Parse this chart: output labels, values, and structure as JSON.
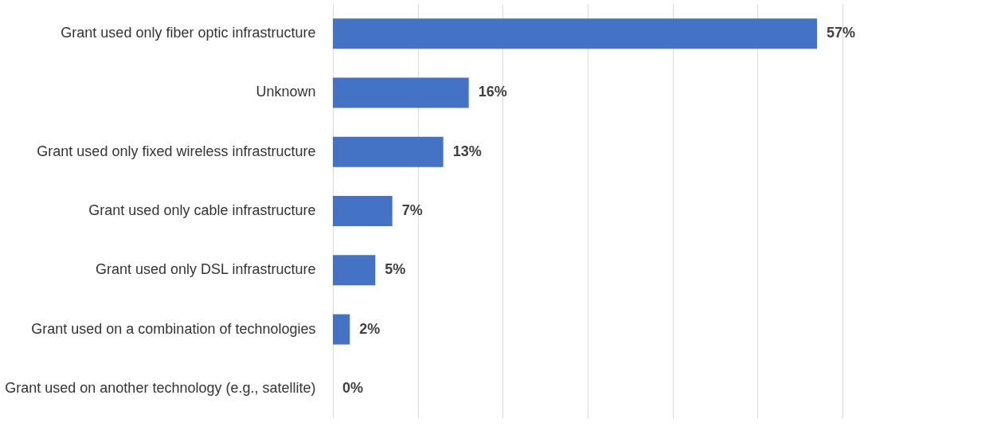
{
  "chart_data": {
    "type": "bar",
    "orientation": "horizontal",
    "categories": [
      "Grant used only fiber optic infrastructure",
      "Unknown",
      "Grant used only fixed wireless infrastructure",
      "Grant used only cable infrastructure",
      "Grant used only DSL infrastructure",
      "Grant used on a combination of technologies",
      "Grant used on another technology (e.g., satellite)"
    ],
    "values": [
      57,
      16,
      13,
      7,
      5,
      2,
      0
    ],
    "value_labels": [
      "57%",
      "16%",
      "13%",
      "7%",
      "5%",
      "2%",
      "0%"
    ],
    "color": "#4472c4",
    "xlim": [
      0,
      60
    ],
    "xticks": [
      {
        "value": 0,
        "label": null
      },
      {
        "value": 10,
        "label": null
      },
      {
        "value": 20,
        "label": null
      },
      {
        "value": 30,
        "label": null
      },
      {
        "value": 40,
        "label": null
      },
      {
        "value": 50,
        "label": null
      },
      {
        "value": 60,
        "label": null
      }
    ],
    "grid": "x",
    "tick_labels": "y"
  }
}
